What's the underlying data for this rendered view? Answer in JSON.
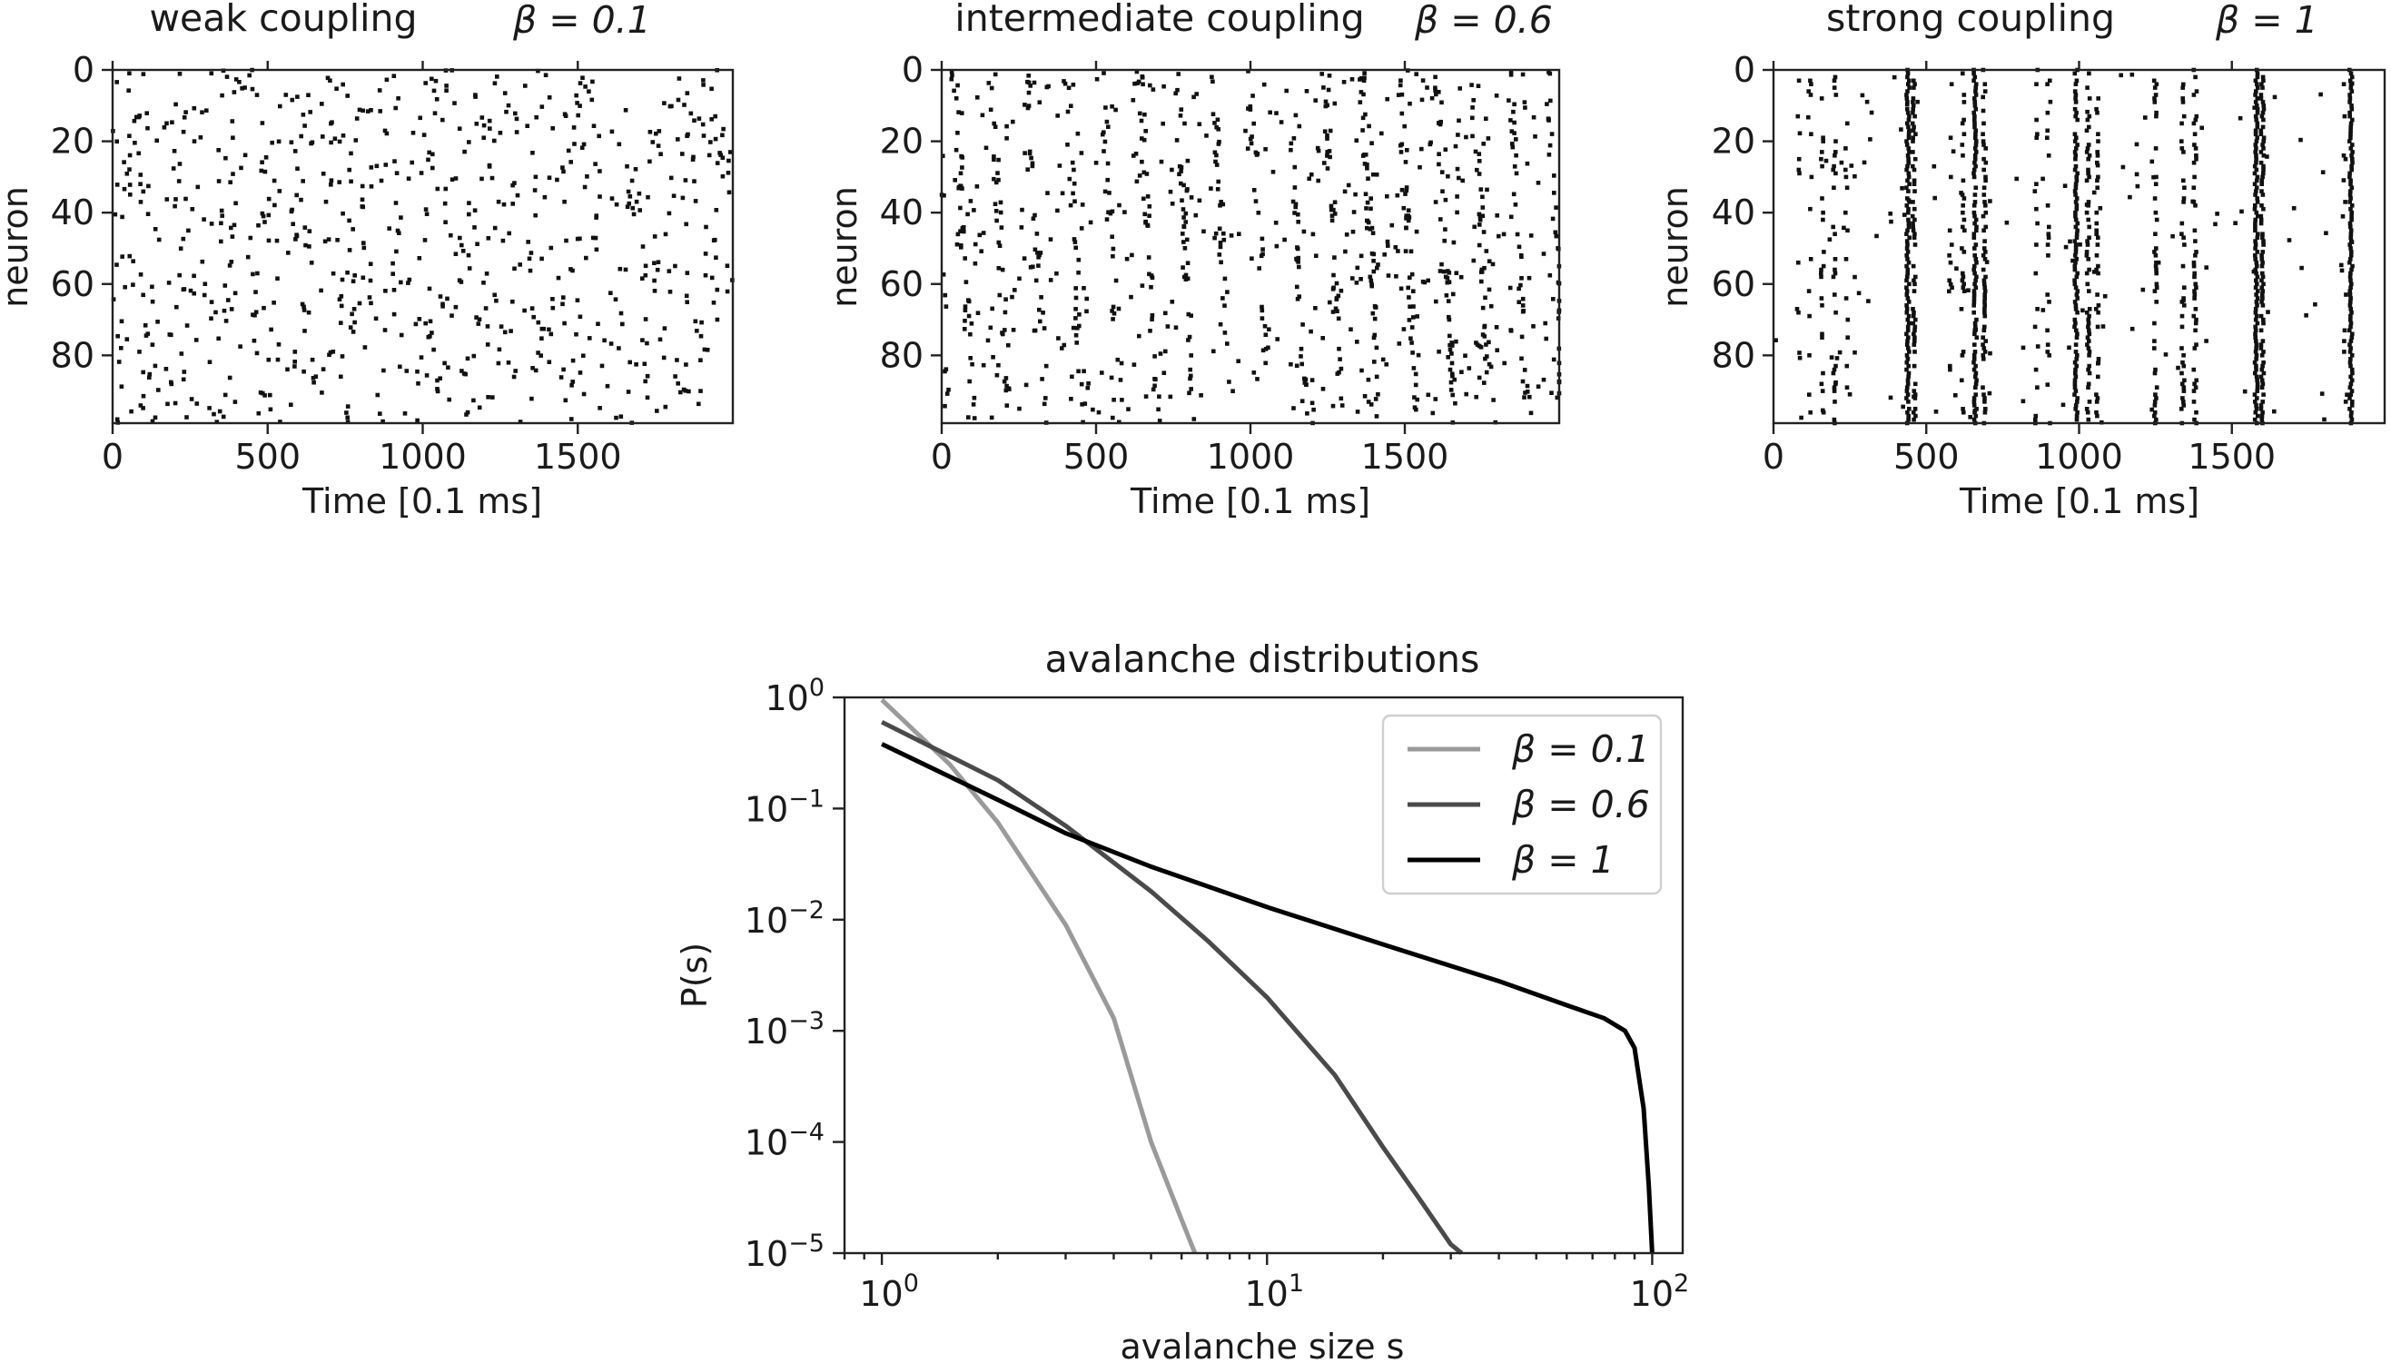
{
  "chart_data": [
    {
      "type": "scatter",
      "title": "weak coupling",
      "title_beta": "β = 0.1",
      "xlabel": "Time [0.1 ms]",
      "ylabel": "neuron",
      "xlim": [
        0,
        2000
      ],
      "ylim": [
        99,
        0
      ],
      "xticks": [
        0,
        500,
        1000,
        1500
      ],
      "yticks": [
        0,
        20,
        40,
        60,
        80
      ],
      "pattern": "random",
      "seed": 7,
      "spike_count": 760,
      "bursts": []
    },
    {
      "type": "scatter",
      "title": "intermediate coupling",
      "title_beta": "β = 0.6",
      "xlabel": "Time [0.1 ms]",
      "ylabel": "neuron",
      "xlim": [
        0,
        2000
      ],
      "ylim": [
        99,
        0
      ],
      "xticks": [
        0,
        500,
        1000,
        1500
      ],
      "yticks": [
        0,
        20,
        40,
        60,
        80
      ],
      "pattern": "clustered",
      "seed": 19,
      "spike_count": 980,
      "bursts": []
    },
    {
      "type": "scatter",
      "title": "strong coupling",
      "title_beta": "β = 1",
      "xlabel": "Time [0.1 ms]",
      "ylabel": "neuron",
      "xlim": [
        0,
        2000
      ],
      "ylim": [
        99,
        0
      ],
      "xticks": [
        0,
        500,
        1000,
        1500
      ],
      "yticks": [
        0,
        20,
        40,
        60,
        80
      ],
      "pattern": "bursting",
      "seed": 31,
      "spike_count": 140,
      "bursts": [
        {
          "t": 80,
          "p": 0.1
        },
        {
          "t": 120,
          "p": 0.12
        },
        {
          "t": 160,
          "p": 0.16
        },
        {
          "t": 200,
          "p": 0.22
        },
        {
          "t": 240,
          "p": 0.18
        },
        {
          "t": 440,
          "p": 0.97
        },
        {
          "t": 460,
          "p": 0.6
        },
        {
          "t": 580,
          "p": 0.18
        },
        {
          "t": 620,
          "p": 0.25
        },
        {
          "t": 660,
          "p": 0.92
        },
        {
          "t": 690,
          "p": 0.5
        },
        {
          "t": 860,
          "p": 0.2
        },
        {
          "t": 900,
          "p": 0.22
        },
        {
          "t": 990,
          "p": 0.9
        },
        {
          "t": 1030,
          "p": 0.55
        },
        {
          "t": 1060,
          "p": 0.35
        },
        {
          "t": 1250,
          "p": 0.4
        },
        {
          "t": 1340,
          "p": 0.35
        },
        {
          "t": 1380,
          "p": 0.5
        },
        {
          "t": 1580,
          "p": 1.0
        },
        {
          "t": 1600,
          "p": 0.8
        },
        {
          "t": 1870,
          "p": 0.08
        },
        {
          "t": 1890,
          "p": 1.0
        }
      ]
    },
    {
      "type": "line",
      "title": "avalanche distributions",
      "xlabel": "avalanche size s",
      "ylabel": "P(s)",
      "xscale": "log",
      "yscale": "log",
      "xlim": [
        0.8,
        120
      ],
      "ylim": [
        1e-05,
        1
      ],
      "xticks": [
        1,
        10,
        100
      ],
      "xtick_labels": [
        {
          "base": "10",
          "exp": "0"
        },
        {
          "base": "10",
          "exp": "1"
        },
        {
          "base": "10",
          "exp": "2"
        }
      ],
      "yticks": [
        1,
        0.1,
        0.01,
        0.001,
        0.0001,
        1e-05
      ],
      "ytick_labels": [
        {
          "base": "10",
          "exp": "0"
        },
        {
          "base": "10",
          "exp": "−1"
        },
        {
          "base": "10",
          "exp": "−2"
        },
        {
          "base": "10",
          "exp": "−3"
        },
        {
          "base": "10",
          "exp": "−4"
        },
        {
          "base": "10",
          "exp": "−5"
        }
      ],
      "grid": false,
      "legend_position": "top-right",
      "series": [
        {
          "name": "β = 0.1",
          "color": "#9a9a9a",
          "x": [
            1,
            1.5,
            2,
            3,
            4,
            5,
            6,
            6.5
          ],
          "y": [
            0.95,
            0.25,
            0.075,
            0.009,
            0.0013,
            0.0001,
            2e-05,
            1e-05
          ]
        },
        {
          "name": "β = 0.6",
          "color": "#4a4a4a",
          "x": [
            1,
            2,
            3,
            5,
            7,
            10,
            15,
            20,
            25,
            30,
            32
          ],
          "y": [
            0.6,
            0.18,
            0.07,
            0.018,
            0.0065,
            0.002,
            0.0004,
            9e-05,
            3e-05,
            1.2e-05,
            1e-05
          ]
        },
        {
          "name": "β = 1",
          "color": "#000000",
          "x": [
            1,
            2,
            3,
            5,
            10,
            20,
            40,
            60,
            75,
            85,
            90,
            95,
            98,
            100
          ],
          "y": [
            0.38,
            0.12,
            0.06,
            0.03,
            0.013,
            0.006,
            0.0028,
            0.0017,
            0.0013,
            0.001,
            0.0007,
            0.0002,
            4e-05,
            1e-05
          ]
        }
      ]
    }
  ]
}
